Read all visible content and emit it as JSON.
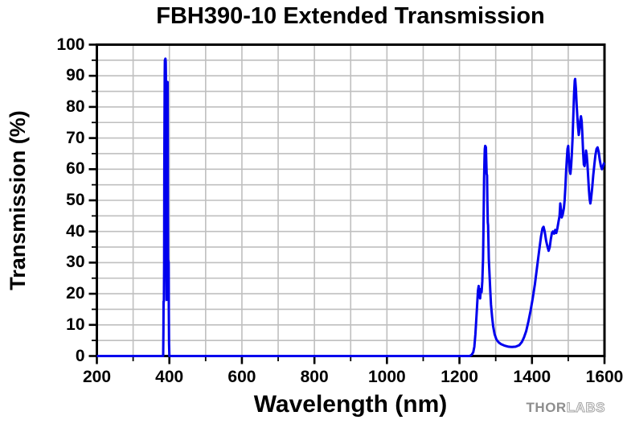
{
  "figure": {
    "branding": {
      "thor": "THOR",
      "labs": "LABS"
    }
  },
  "chart_data": {
    "type": "line",
    "title": "FBH390-10 Extended Transmission",
    "xlabel": "Wavelength (nm)",
    "ylabel": "Transmission (%)",
    "xlim": [
      200,
      1600
    ],
    "ylim": [
      0,
      100
    ],
    "x_major_ticks": [
      200,
      400,
      600,
      800,
      1000,
      1200,
      1400,
      1600
    ],
    "x_minor_tick_step": 100,
    "y_major_ticks": [
      0,
      10,
      20,
      30,
      40,
      50,
      60,
      70,
      80,
      90,
      100
    ],
    "y_minor_tick_step": 5,
    "grid": {
      "visible": true,
      "x_interval_nm": 100,
      "y_interval_pct": 5
    },
    "legend": {
      "visible": false
    },
    "colors": {
      "line": "#0000ee",
      "grid": "#bfbfbf",
      "axis": "#000000",
      "background": "#ffffff",
      "text": "#000000",
      "logo_thor": "#8e8e8e",
      "logo_labs_outline": "#a6a6a6"
    },
    "series": [
      {
        "name": "Transmission",
        "points": [
          [
            200,
            0
          ],
          [
            380,
            0
          ],
          [
            383,
            0
          ],
          [
            383.5,
            8
          ],
          [
            384,
            17.5
          ],
          [
            385,
            17.5
          ],
          [
            385.5,
            30
          ],
          [
            386,
            60
          ],
          [
            387,
            90
          ],
          [
            387.5,
            95
          ],
          [
            389,
            95.5
          ],
          [
            390,
            94.5
          ],
          [
            390.5,
            90
          ],
          [
            391,
            75
          ],
          [
            391.5,
            50
          ],
          [
            392,
            25
          ],
          [
            392.5,
            18
          ],
          [
            393,
            40
          ],
          [
            393.5,
            70
          ],
          [
            394,
            87.5
          ],
          [
            395,
            88
          ],
          [
            395.5,
            70
          ],
          [
            396,
            45
          ],
          [
            396.5,
            31
          ],
          [
            398,
            30
          ],
          [
            398.5,
            15
          ],
          [
            399,
            4
          ],
          [
            400,
            0
          ],
          [
            402,
            0
          ],
          [
            1228,
            0
          ],
          [
            1233,
            0.3
          ],
          [
            1238,
            1.2
          ],
          [
            1241,
            3
          ],
          [
            1244,
            7
          ],
          [
            1247,
            13
          ],
          [
            1249,
            17
          ],
          [
            1251,
            21
          ],
          [
            1253,
            22.5
          ],
          [
            1255,
            19
          ],
          [
            1257,
            18.5
          ],
          [
            1259,
            21.5
          ],
          [
            1261,
            20.5
          ],
          [
            1263,
            24
          ],
          [
            1265,
            31
          ],
          [
            1266,
            38
          ],
          [
            1267,
            48
          ],
          [
            1268,
            57
          ],
          [
            1269,
            63
          ],
          [
            1270,
            66.5
          ],
          [
            1271,
            67.5
          ],
          [
            1273,
            67
          ],
          [
            1274,
            62
          ],
          [
            1275,
            58.5
          ],
          [
            1276,
            58
          ],
          [
            1277,
            50
          ],
          [
            1278,
            43
          ],
          [
            1279,
            42
          ],
          [
            1280,
            36
          ],
          [
            1281,
            31
          ],
          [
            1283,
            26
          ],
          [
            1285,
            21
          ],
          [
            1287,
            16.5
          ],
          [
            1290,
            12.5
          ],
          [
            1293,
            9.5
          ],
          [
            1297,
            7
          ],
          [
            1302,
            5.3
          ],
          [
            1308,
            4.4
          ],
          [
            1315,
            3.8
          ],
          [
            1325,
            3.3
          ],
          [
            1335,
            3
          ],
          [
            1345,
            2.9
          ],
          [
            1355,
            3
          ],
          [
            1365,
            3.5
          ],
          [
            1372,
            4.5
          ],
          [
            1378,
            6
          ],
          [
            1384,
            8
          ],
          [
            1390,
            11
          ],
          [
            1396,
            14.5
          ],
          [
            1402,
            18.5
          ],
          [
            1408,
            23
          ],
          [
            1414,
            28.5
          ],
          [
            1420,
            34
          ],
          [
            1425,
            38.5
          ],
          [
            1429,
            41
          ],
          [
            1432,
            41.5
          ],
          [
            1435,
            40
          ],
          [
            1439,
            37
          ],
          [
            1443,
            35
          ],
          [
            1446,
            33.8
          ],
          [
            1449,
            35
          ],
          [
            1452,
            37.5
          ],
          [
            1455,
            39.5
          ],
          [
            1458,
            40
          ],
          [
            1461,
            39.3
          ],
          [
            1464,
            40.5
          ],
          [
            1467,
            39.5
          ],
          [
            1470,
            41
          ],
          [
            1473,
            43
          ],
          [
            1476,
            45
          ],
          [
            1478,
            49
          ],
          [
            1480,
            47
          ],
          [
            1482,
            44.5
          ],
          [
            1485,
            45.5
          ],
          [
            1488,
            47.5
          ],
          [
            1490,
            50
          ],
          [
            1492,
            54
          ],
          [
            1494,
            59
          ],
          [
            1496,
            63
          ],
          [
            1498,
            66.5
          ],
          [
            1500,
            67.5
          ],
          [
            1502,
            63
          ],
          [
            1504,
            59.5
          ],
          [
            1506,
            58.5
          ],
          [
            1508,
            61
          ],
          [
            1510,
            65
          ],
          [
            1512,
            70
          ],
          [
            1514,
            77
          ],
          [
            1516,
            84
          ],
          [
            1518,
            88.5
          ],
          [
            1519,
            89
          ],
          [
            1521,
            86
          ],
          [
            1523,
            81
          ],
          [
            1525,
            77
          ],
          [
            1527,
            73.5
          ],
          [
            1529,
            71
          ],
          [
            1531,
            73
          ],
          [
            1533,
            75.5
          ],
          [
            1535,
            77
          ],
          [
            1537,
            75.5
          ],
          [
            1539,
            71
          ],
          [
            1541,
            65.5
          ],
          [
            1543,
            61.5
          ],
          [
            1545,
            61
          ],
          [
            1547,
            63.5
          ],
          [
            1549,
            66
          ],
          [
            1551,
            64.5
          ],
          [
            1553,
            61.5
          ],
          [
            1555,
            57.5
          ],
          [
            1557,
            53.5
          ],
          [
            1559,
            50.5
          ],
          [
            1561,
            49
          ],
          [
            1563,
            50.5
          ],
          [
            1566,
            54
          ],
          [
            1569,
            58
          ],
          [
            1572,
            61.5
          ],
          [
            1575,
            64.5
          ],
          [
            1578,
            66.5
          ],
          [
            1581,
            67
          ],
          [
            1584,
            65.5
          ],
          [
            1587,
            63
          ],
          [
            1590,
            61
          ],
          [
            1593,
            60
          ],
          [
            1596,
            61
          ],
          [
            1599,
            62
          ],
          [
            1600,
            62
          ]
        ]
      }
    ]
  }
}
